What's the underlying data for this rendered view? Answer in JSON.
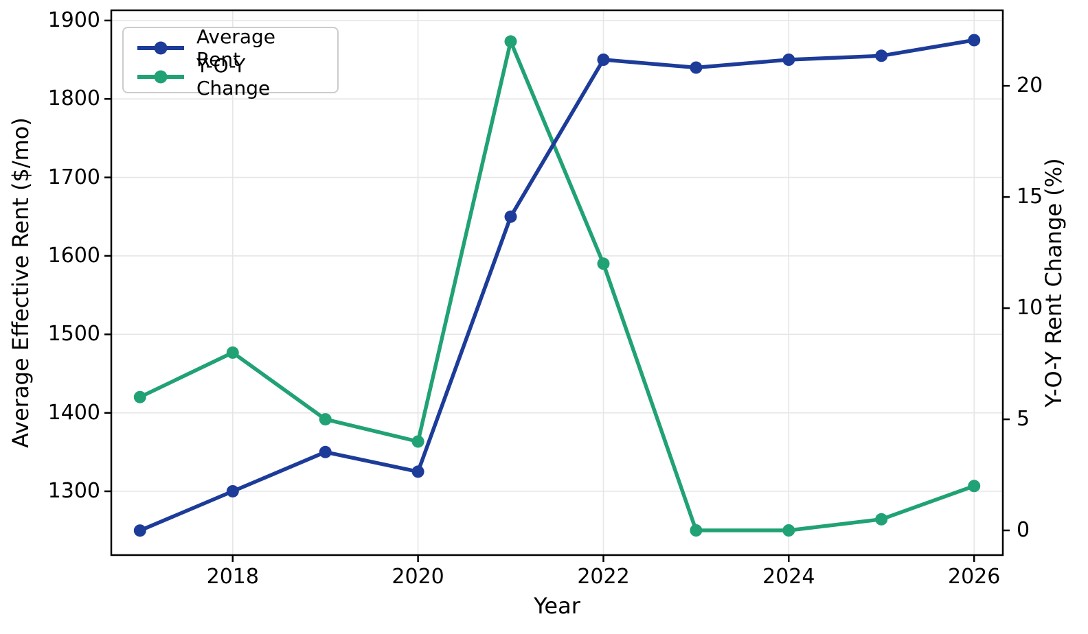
{
  "chart_data": {
    "type": "line",
    "title": "",
    "xlabel": "Year",
    "ylabel_left": "Average Effective Rent ($/mo)",
    "ylabel_right": "Y-O-Y Rent Change (%)",
    "x": [
      2017,
      2018,
      2019,
      2020,
      2021,
      2022,
      2023,
      2024,
      2025,
      2026
    ],
    "series": [
      {
        "name": "Average Rent",
        "axis": "left",
        "color": "#1d3c99",
        "values": [
          1250,
          1300,
          1350,
          1325,
          1650,
          1850,
          1840,
          1850,
          1855,
          1875
        ]
      },
      {
        "name": "Y-O-Y Change",
        "axis": "right",
        "color": "#21a274",
        "values": [
          6,
          8,
          5,
          4,
          22,
          12,
          0,
          0,
          0.5,
          2
        ]
      }
    ],
    "x_ticks": [
      2018,
      2020,
      2022,
      2024,
      2026
    ],
    "left_ticks": [
      1300,
      1400,
      1500,
      1600,
      1700,
      1800,
      1900
    ],
    "right_ticks": [
      0,
      5,
      10,
      15,
      20
    ],
    "xlim": [
      2016.69,
      2026.31
    ],
    "left_ylim": [
      1218.7,
      1913.0
    ],
    "right_ylim": [
      -1.11,
      23.4
    ],
    "grid": true,
    "legend_position": "upper left",
    "colors": {
      "grid": "#e6e6e6",
      "spine": "#000000",
      "background": "#ffffff"
    }
  }
}
